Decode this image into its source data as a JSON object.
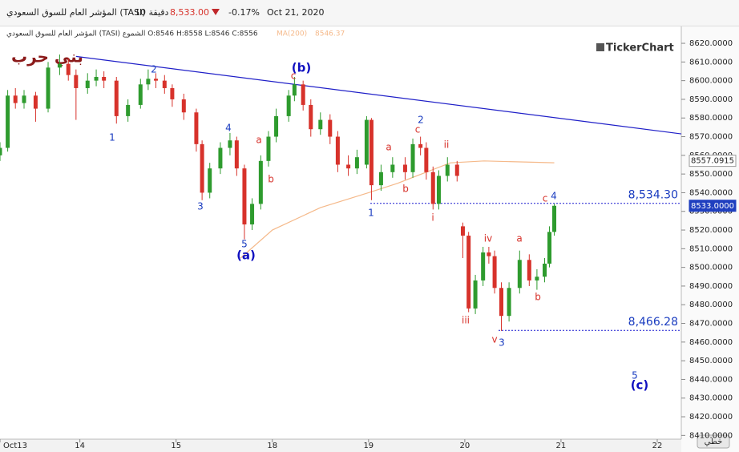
{
  "header": {
    "symbol": "المؤشر العام للسوق السعودي (TASI)",
    "interval": "10 دقيقة",
    "price": "8,533.00",
    "change": "-0.17%",
    "date": "Oct 21, 2020"
  },
  "legend_line": "المؤشر العام للسوق السعودي (TASI) الشموع O:8546 H:8558 L:8546 C:8556",
  "ma_label": "MA(200)",
  "ma_value": "8546.37",
  "watermark": "بني حرب",
  "logo": "TickerChart",
  "mode_button": "خطي",
  "chart_data": {
    "type": "candlestick",
    "x": [
      0.17,
      0.25,
      0.33,
      0.42,
      0.54,
      0.67,
      0.79,
      0.88,
      0.96,
      1.08,
      1.17,
      1.25,
      1.38,
      1.5,
      1.63,
      1.71,
      1.79,
      1.88,
      1.96,
      2.08,
      2.21,
      2.27,
      2.35,
      2.46,
      2.56,
      2.63,
      2.71,
      2.79,
      2.88,
      2.96,
      3.04,
      3.17,
      3.23,
      3.32,
      3.4,
      3.5,
      3.6,
      3.68,
      3.79,
      3.88,
      3.98,
      4.03,
      4.13,
      4.25,
      4.38,
      4.46,
      4.54,
      4.6,
      4.67,
      4.73,
      4.82,
      4.92,
      4.98,
      5.04,
      5.11,
      5.19,
      5.25,
      5.31,
      5.38,
      5.46,
      5.57,
      5.67,
      5.75,
      5.83,
      5.88,
      5.93
    ],
    "open": [
      8560,
      8564,
      8592,
      8588,
      8592,
      8585,
      8607,
      8609,
      8603,
      8596,
      8600,
      8602,
      8600,
      8581,
      8587,
      8598,
      8601,
      8600,
      8596,
      8590,
      8583,
      8566,
      8540,
      8553,
      8564,
      8568,
      8553,
      8523,
      8534,
      8557,
      8570,
      8581,
      8592,
      8598,
      8587,
      8574,
      8579,
      8570,
      8555,
      8553,
      8555,
      8579,
      8544,
      8551,
      8555,
      8551,
      8566,
      8564,
      8551,
      8534,
      8549,
      8555,
      8522,
      8517,
      8478,
      8493,
      8508,
      8506,
      8489,
      8474,
      8489,
      8504,
      8493,
      8495,
      8502,
      8519
    ],
    "high": [
      8567,
      8595,
      8596,
      8595,
      8594,
      8610,
      8614,
      8612,
      8606,
      8604,
      8606,
      8605,
      8602,
      8590,
      8601,
      8606,
      8604,
      8603,
      8598,
      8593,
      8585,
      8568,
      8556,
      8567,
      8572,
      8570,
      8555,
      8537,
      8560,
      8573,
      8585,
      8595,
      8602,
      8600,
      8590,
      8583,
      8582,
      8573,
      8560,
      8563,
      8581,
      8580,
      8555,
      8559,
      8559,
      8569,
      8570,
      8567,
      8554,
      8552,
      8559,
      8557,
      8524,
      8519,
      8496,
      8511,
      8511,
      8509,
      8492,
      8492,
      8509,
      8507,
      8499,
      8505,
      8522,
      8534
    ],
    "low": [
      8557,
      8562,
      8585,
      8585,
      8578,
      8583,
      8603,
      8600,
      8579,
      8593,
      8597,
      8596,
      8577,
      8578,
      8585,
      8595,
      8596,
      8593,
      8586,
      8579,
      8562,
      8536,
      8537,
      8550,
      8560,
      8549,
      8515,
      8520,
      8531,
      8554,
      8567,
      8578,
      8589,
      8584,
      8570,
      8571,
      8566,
      8551,
      8549,
      8550,
      8553,
      8536,
      8541,
      8548,
      8547,
      8548,
      8560,
      8547,
      8531,
      8531,
      8546,
      8546,
      8505,
      8476,
      8475,
      8490,
      8502,
      8486,
      8466,
      8471,
      8486,
      8490,
      8488,
      8492,
      8500,
      8517
    ],
    "close": [
      8564,
      8592,
      8588,
      8592,
      8585,
      8607,
      8609,
      8603,
      8596,
      8600,
      8602,
      8600,
      8581,
      8587,
      8598,
      8601,
      8600,
      8596,
      8590,
      8583,
      8566,
      8540,
      8553,
      8564,
      8568,
      8553,
      8523,
      8534,
      8557,
      8570,
      8581,
      8592,
      8598,
      8587,
      8574,
      8579,
      8570,
      8555,
      8553,
      8559,
      8579,
      8544,
      8551,
      8555,
      8551,
      8566,
      8564,
      8551,
      8534,
      8549,
      8555,
      8549,
      8517,
      8478,
      8493,
      8508,
      8506,
      8489,
      8474,
      8489,
      8504,
      8493,
      8495,
      8502,
      8519,
      8533
    ],
    "up_color": "#2e9b2e",
    "down_color": "#d7322b",
    "ma": {
      "name": "MA(200)",
      "color": "#f5b98a",
      "x": [
        2.67,
        3.0,
        3.5,
        4.0,
        4.3,
        4.6,
        4.85,
        5.2,
        5.93
      ],
      "values": [
        8505,
        8520,
        8532,
        8540,
        8545,
        8551,
        8556,
        8557,
        8556
      ]
    },
    "trendline": {
      "color": "#2020c8",
      "x": [
        0.96,
        7.25
      ],
      "values": [
        8613,
        8571.5
      ]
    },
    "levels": [
      {
        "value": 8534.3,
        "label": "8,534.30"
      },
      {
        "value": 8466.28,
        "label": "8,466.28"
      }
    ],
    "price_tags": [
      {
        "value": 8557.0915,
        "label": "8557.0915"
      },
      {
        "value": 8533,
        "label": "8533.0000"
      }
    ],
    "annotations": [
      {
        "text": "1",
        "color": "#1a3cc0"
      },
      {
        "text": "2",
        "color": "#1a3cc0"
      },
      {
        "text": "3",
        "color": "#1a3cc0"
      },
      {
        "text": "4",
        "color": "#1a3cc0"
      },
      {
        "text": "5",
        "color": "#1a3cc0"
      },
      {
        "text": "(a)",
        "color": "#1010c0"
      },
      {
        "text": "a",
        "color": "#d7322b"
      },
      {
        "text": "b",
        "color": "#d7322b"
      },
      {
        "text": "c",
        "color": "#d7322b"
      },
      {
        "text": "(b)",
        "color": "#1010c0"
      },
      {
        "text": "2",
        "color": "#1a3cc0"
      },
      {
        "text": "c",
        "color": "#d7322b"
      },
      {
        "text": "a",
        "color": "#d7322b"
      },
      {
        "text": "b",
        "color": "#d7322b"
      },
      {
        "text": "ii",
        "color": "#d7322b"
      },
      {
        "text": "1",
        "color": "#1a3cc0"
      },
      {
        "text": "i",
        "color": "#d7322b"
      },
      {
        "text": "iii",
        "color": "#d7322b"
      },
      {
        "text": "iv",
        "color": "#d7322b"
      },
      {
        "text": "a",
        "color": "#d7322b"
      },
      {
        "text": "b",
        "color": "#d7322b"
      },
      {
        "text": "c",
        "color": "#d7322b"
      },
      {
        "text": "4",
        "color": "#1a3cc0"
      },
      {
        "text": "v",
        "color": "#d7322b"
      },
      {
        "text": "3",
        "color": "#1a3cc0"
      },
      {
        "text": "5",
        "color": "#1a3cc0"
      },
      {
        "text": "(c)",
        "color": "#1010c0"
      }
    ],
    "xlim": [
      0.17,
      7.25
    ],
    "xticks": [
      {
        "value": 0.17,
        "label": "Oct13"
      },
      {
        "value": 1,
        "label": "14"
      },
      {
        "value": 2,
        "label": "15"
      },
      {
        "value": 3,
        "label": "18"
      },
      {
        "value": 4,
        "label": "19"
      },
      {
        "value": 5,
        "label": "20"
      },
      {
        "value": 6,
        "label": "21"
      },
      {
        "value": 7,
        "label": "22"
      }
    ],
    "ylim": [
      8408,
      8628
    ],
    "yticks": [
      {
        "value": 8410,
        "label": "8410.0000"
      },
      {
        "value": 8420,
        "label": "8420.0000"
      },
      {
        "value": 8430,
        "label": "8430.0000"
      },
      {
        "value": 8440,
        "label": "8440.0000"
      },
      {
        "value": 8450,
        "label": "8450.0000"
      },
      {
        "value": 8460,
        "label": "8460.0000"
      },
      {
        "value": 8470,
        "label": "8470.0000"
      },
      {
        "value": 8480,
        "label": "8480.0000"
      },
      {
        "value": 8490,
        "label": "8490.0000"
      },
      {
        "value": 8500,
        "label": "8500.0000"
      },
      {
        "value": 8510,
        "label": "8510.0000"
      },
      {
        "value": 8520,
        "label": "8520.0000"
      },
      {
        "value": 8530,
        "label": "8530.0000"
      },
      {
        "value": 8540,
        "label": "8540.0000"
      },
      {
        "value": 8550,
        "label": "8550.0000"
      },
      {
        "value": 8560,
        "label": "8560.0000"
      },
      {
        "value": 8570,
        "label": "8570.0000"
      },
      {
        "value": 8580,
        "label": "8580.0000"
      },
      {
        "value": 8590,
        "label": "8590.0000"
      },
      {
        "value": 8600,
        "label": "8600.0000"
      },
      {
        "value": 8610,
        "label": "8610.0000"
      },
      {
        "value": 8620,
        "label": "8620.0000"
      }
    ]
  }
}
